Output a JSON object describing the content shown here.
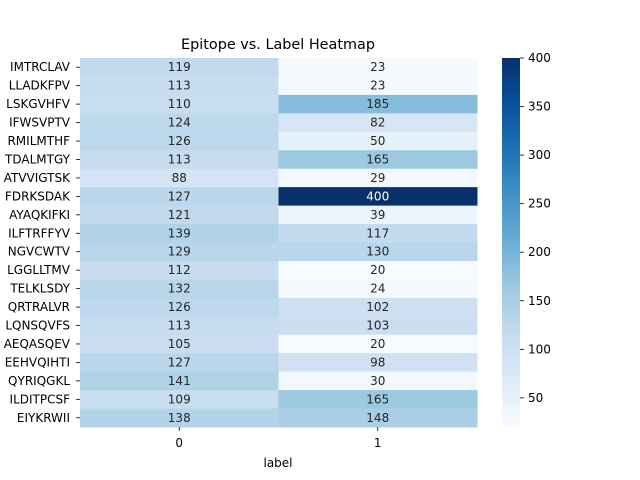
{
  "chart_data": {
    "type": "heatmap",
    "title": "Epitope vs. Label Heatmap",
    "xlabel": "label",
    "ylabel": "",
    "x_categories": [
      "0",
      "1"
    ],
    "y_categories": [
      "IMTRCLAV",
      "LLADKFPV",
      "LSKGVHFV",
      "IFWSVPTV",
      "RMILMTHF",
      "TDALMTGY",
      "ATVVIGTSK",
      "FDRKSDAK",
      "AYAQKIFKI",
      "ILFTRFFYV",
      "NGVCWTV",
      "LGGLLTMV",
      "TELKLSDY",
      "QRTRALVR",
      "LQNSQVFS",
      "AEQASQEV",
      "EEHVQIHTI",
      "QYRIQGKL",
      "ILDITPCSF",
      "EIYKRWII"
    ],
    "values": [
      [
        119,
        23
      ],
      [
        113,
        23
      ],
      [
        110,
        185
      ],
      [
        124,
        82
      ],
      [
        126,
        50
      ],
      [
        113,
        165
      ],
      [
        88,
        29
      ],
      [
        127,
        400
      ],
      [
        121,
        39
      ],
      [
        139,
        117
      ],
      [
        129,
        130
      ],
      [
        112,
        20
      ],
      [
        132,
        24
      ],
      [
        126,
        102
      ],
      [
        113,
        103
      ],
      [
        105,
        20
      ],
      [
        127,
        98
      ],
      [
        141,
        30
      ],
      [
        109,
        165
      ],
      [
        138,
        148
      ]
    ],
    "colormap": "Blues",
    "value_range": [
      20,
      400
    ],
    "colorbar_ticks": [
      50,
      100,
      150,
      200,
      250,
      300,
      350,
      400
    ],
    "annotated": true,
    "grid": false
  }
}
